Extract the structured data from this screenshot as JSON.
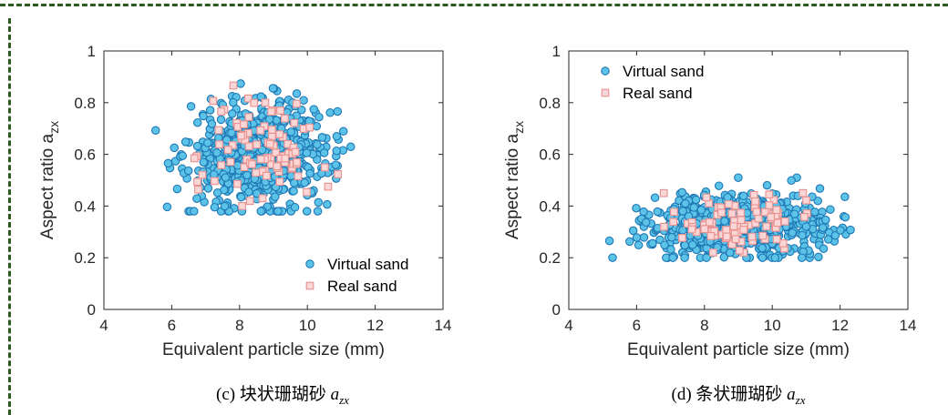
{
  "captions": [
    {
      "label": "(c) 块状珊瑚砂",
      "var": "a",
      "sub": "zx"
    },
    {
      "label": "(d) 条状珊瑚砂",
      "var": "a",
      "sub": "zx"
    }
  ],
  "colors": {
    "virtual_edge": "#1f77b4",
    "virtual_fill": "#5bc3e8",
    "real_edge": "#e8908e",
    "real_fill": "#fad7d6",
    "frame": "#2e5a1f"
  },
  "chart_data": [
    {
      "type": "scatter",
      "title": "",
      "xlabel": "Equivalent particle size (mm)",
      "ylabel_main": "Aspect ratio a",
      "ylabel_sub": "zx",
      "xlim": [
        4,
        14
      ],
      "ylim": [
        0,
        1
      ],
      "xticks": [
        4,
        6,
        8,
        10,
        12,
        14
      ],
      "yticks": [
        0,
        0.2,
        0.4,
        0.6,
        0.8,
        1
      ],
      "grid": false,
      "legend_position": "bottom-right",
      "series": [
        {
          "name": "Virtual sand",
          "marker": "circle",
          "count": 700,
          "x_center": 8.6,
          "x_spread": 1.05,
          "x_range": [
            5.4,
            12.3
          ],
          "y_center": 0.6,
          "y_spread": 0.1,
          "y_range": [
            0.38,
            0.94
          ]
        },
        {
          "name": "Real sand",
          "marker": "square",
          "count": 90,
          "x_center": 8.6,
          "x_spread": 1.0,
          "x_range": [
            6.6,
            10.9
          ],
          "y_center": 0.62,
          "y_spread": 0.1,
          "y_range": [
            0.4,
            0.89
          ]
        }
      ]
    },
    {
      "type": "scatter",
      "title": "",
      "xlabel": "Equivalent particle size (mm)",
      "ylabel_main": "Aspect ratio a",
      "ylabel_sub": "zx",
      "xlim": [
        4,
        14
      ],
      "ylim": [
        0,
        1
      ],
      "xticks": [
        4,
        6,
        8,
        10,
        12,
        14
      ],
      "yticks": [
        0,
        0.2,
        0.4,
        0.6,
        0.8,
        1
      ],
      "grid": false,
      "legend_position": "top-left",
      "series": [
        {
          "name": "Virtual sand",
          "marker": "circle",
          "count": 700,
          "x_center": 9.0,
          "x_spread": 1.3,
          "x_range": [
            5.2,
            13.3
          ],
          "y_center": 0.32,
          "y_spread": 0.06,
          "y_range": [
            0.2,
            0.51
          ]
        },
        {
          "name": "Real sand",
          "marker": "square",
          "count": 90,
          "x_center": 8.9,
          "x_spread": 1.1,
          "x_range": [
            6.8,
            11.6
          ],
          "y_center": 0.33,
          "y_spread": 0.05,
          "y_range": [
            0.22,
            0.45
          ]
        }
      ]
    }
  ]
}
